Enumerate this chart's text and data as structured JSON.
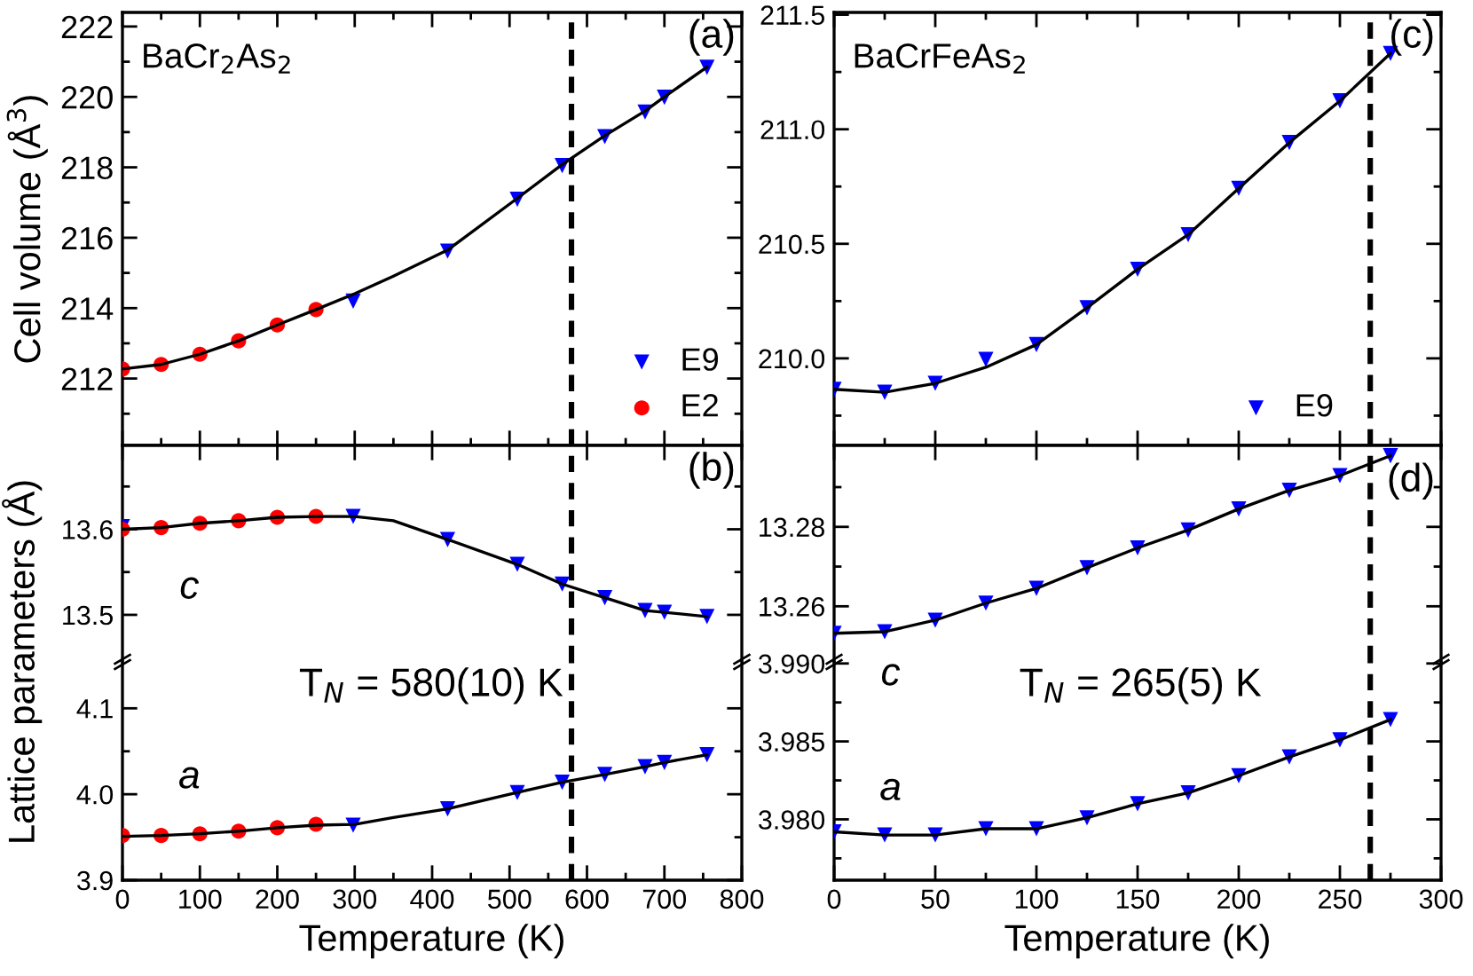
{
  "chart_data": [
    {
      "type": "scatter",
      "ylabel": "Cell volume (Å$^{3}$)",
      "annotations": [
        "BaCr$_{2}$As$_{2}$",
        "(a)"
      ],
      "xlim": [
        0,
        800
      ],
      "xticks": [
        0,
        {
          "value": 50,
          "label": null
        },
        100,
        {
          "value": 150,
          "label": null
        },
        200,
        {
          "value": 250,
          "label": null
        },
        300,
        {
          "value": 350,
          "label": null
        },
        400,
        {
          "value": 450,
          "label": null
        },
        500,
        {
          "value": 550,
          "label": null
        },
        600,
        {
          "value": 650,
          "label": null
        },
        700,
        {
          "value": 750,
          "label": null
        },
        800
      ],
      "ylim": [
        210.1,
        222.4
      ],
      "yticks": [
        {
          "value": 211,
          "label": null
        },
        212,
        {
          "value": 213,
          "label": null
        },
        214,
        {
          "value": 215,
          "label": null
        },
        216,
        {
          "value": 217,
          "label": null
        },
        218,
        {
          "value": 219,
          "label": null
        },
        220,
        {
          "value": 221,
          "label": null
        },
        222
      ],
      "tick_labels": "y",
      "legend": "bottom right",
      "ref_lines": [
        {
          "axis": "x",
          "value": 580,
          "color": "#000000",
          "line_style": "dashed"
        }
      ],
      "series": [
        {
          "name": "E9",
          "marker": "triangle",
          "color": "#0000ff",
          "x": [
            298,
            420,
            510,
            568,
            623,
            675,
            700,
            755
          ],
          "values": [
            214.2,
            215.62,
            217.09,
            218.05,
            218.87,
            219.57,
            219.99,
            220.84
          ]
        },
        {
          "name": "E2",
          "marker": "circle",
          "color": "#ff0000",
          "x": [
            0,
            50,
            100,
            150,
            200,
            250
          ],
          "values": [
            212.27,
            212.4,
            212.69,
            213.07,
            213.52,
            213.96
          ]
        },
        {
          "type": "line",
          "marker": "none",
          "color": "#000000",
          "x": [
            0,
            50,
            100,
            150,
            200,
            250,
            300,
            350,
            420,
            510,
            568,
            623,
            675,
            700,
            755
          ],
          "values": [
            212.27,
            212.4,
            212.69,
            213.07,
            213.52,
            213.96,
            214.41,
            214.91,
            215.65,
            217.12,
            218.08,
            218.9,
            219.6,
            220.0,
            220.85
          ]
        }
      ]
    },
    {
      "type": "scatter",
      "ylabel": "Lattice parameters (Å)",
      "annotations": [
        "(b)",
        "c"
      ],
      "xlim": [
        0,
        800
      ],
      "xticks": [
        0,
        100,
        200,
        300,
        400,
        500,
        600,
        700,
        800
      ],
      "ylim": [
        13.445,
        13.698
      ],
      "yticks": [
        13.5,
        {
          "value": 13.55,
          "label": null
        },
        13.6,
        {
          "value": 13.65,
          "label": null
        }
      ],
      "tick_labels": "y",
      "ref_lines": [
        {
          "axis": "x",
          "value": 580,
          "color": "#000000",
          "line_style": "dashed"
        }
      ],
      "series": [
        {
          "marker": "triangle",
          "color": "#0000ff",
          "x": [
            0,
            298,
            420,
            510,
            568,
            623,
            675,
            700,
            755
          ],
          "values": [
            13.603,
            13.615,
            13.588,
            13.559,
            13.536,
            13.52,
            13.505,
            13.503,
            13.498
          ]
        },
        {
          "marker": "circle",
          "color": "#ff0000",
          "x": [
            0,
            50,
            100,
            150,
            200,
            250
          ],
          "values": [
            13.6,
            13.602,
            13.607,
            13.61,
            13.614,
            13.615
          ]
        },
        {
          "type": "line",
          "marker": "none",
          "color": "#000000",
          "x": [
            0,
            50,
            100,
            150,
            200,
            250,
            300,
            350,
            420,
            510,
            568,
            623,
            675,
            700,
            755
          ],
          "values": [
            13.6,
            13.602,
            13.607,
            13.61,
            13.614,
            13.615,
            13.615,
            13.61,
            13.588,
            13.559,
            13.536,
            13.52,
            13.505,
            13.503,
            13.498
          ]
        }
      ]
    },
    {
      "type": "scatter",
      "xlabel": "Temperature (K)",
      "annotations": [
        "T$_{N}$ = 580(10) K",
        "a"
      ],
      "xlim": [
        0,
        800
      ],
      "xticks": [
        0,
        {
          "value": 50,
          "label": null
        },
        100,
        {
          "value": 150,
          "label": null
        },
        200,
        {
          "value": 250,
          "label": null
        },
        300,
        {
          "value": 350,
          "label": null
        },
        400,
        {
          "value": 450,
          "label": null
        },
        500,
        {
          "value": 550,
          "label": null
        },
        600,
        {
          "value": 650,
          "label": null
        },
        700,
        {
          "value": 750,
          "label": null
        },
        800
      ],
      "ylim": [
        3.9,
        4.154
      ],
      "yticks": [
        {
          "value": 3.9,
          "label": "3.9"
        },
        {
          "value": 3.95,
          "label": null
        },
        {
          "value": 4.0,
          "label": "4.0"
        },
        {
          "value": 4.05,
          "label": null
        },
        {
          "value": 4.1,
          "label": "4.1"
        }
      ],
      "ref_lines": [
        {
          "axis": "x",
          "value": 580,
          "color": "#000000",
          "line_style": "dashed"
        }
      ],
      "series": [
        {
          "marker": "triangle",
          "color": "#0000ff",
          "x": [
            298,
            420,
            510,
            568,
            623,
            675,
            700,
            755
          ],
          "values": [
            3.964,
            3.983,
            4.002,
            4.014,
            4.023,
            4.032,
            4.037,
            4.046
          ]
        },
        {
          "marker": "circle",
          "color": "#ff0000",
          "x": [
            0,
            50,
            100,
            150,
            200,
            250
          ],
          "values": [
            3.952,
            3.952,
            3.954,
            3.957,
            3.961,
            3.965
          ]
        },
        {
          "type": "line",
          "marker": "none",
          "color": "#000000",
          "x": [
            0,
            50,
            100,
            150,
            200,
            250,
            300,
            350,
            420,
            510,
            568,
            623,
            675,
            700,
            755
          ],
          "values": [
            3.951,
            3.952,
            3.954,
            3.957,
            3.961,
            3.964,
            3.965,
            3.973,
            3.983,
            4.002,
            4.014,
            4.023,
            4.032,
            4.037,
            4.046
          ]
        }
      ]
    },
    {
      "type": "scatter",
      "annotations": [
        "BaCrFeAs$_{2}$",
        "(c)"
      ],
      "xlim": [
        0,
        300
      ],
      "xticks": [
        0,
        {
          "value": 25,
          "label": null
        },
        50,
        {
          "value": 75,
          "label": null
        },
        100,
        {
          "value": 125,
          "label": null
        },
        150,
        {
          "value": 175,
          "label": null
        },
        200,
        {
          "value": 225,
          "label": null
        },
        250,
        {
          "value": 275,
          "label": null
        },
        300
      ],
      "ylim": [
        209.62,
        211.51
      ],
      "yticks": [
        {
          "value": 209.75,
          "label": null
        },
        {
          "value": 210.0,
          "label": "210.0"
        },
        {
          "value": 210.25,
          "label": null
        },
        {
          "value": 210.5,
          "label": "210.5"
        },
        {
          "value": 210.75,
          "label": null
        },
        {
          "value": 211.0,
          "label": "211.0"
        },
        {
          "value": 211.25,
          "label": null
        },
        {
          "value": 211.5,
          "label": "211.5"
        }
      ],
      "tick_labels": "y",
      "legend": "bottom right",
      "ref_lines": [
        {
          "axis": "x",
          "value": 265,
          "color": "#000000",
          "line_style": "dashed"
        }
      ],
      "series": [
        {
          "name": "E9",
          "marker": "triangle",
          "color": "#0000ff",
          "x": [
            0,
            25,
            50,
            75,
            100,
            125,
            150,
            175,
            200,
            225,
            250,
            275
          ],
          "values": [
            209.865,
            209.852,
            209.891,
            209.995,
            210.06,
            210.221,
            210.389,
            210.54,
            210.742,
            210.942,
            211.124,
            211.331
          ]
        },
        {
          "type": "line",
          "marker": "none",
          "color": "#000000",
          "x": [
            0,
            25,
            50,
            75,
            100,
            125,
            150,
            175,
            200,
            225,
            250,
            275
          ],
          "values": [
            209.865,
            209.852,
            209.891,
            209.961,
            210.06,
            210.221,
            210.389,
            210.54,
            210.742,
            210.942,
            211.124,
            211.331
          ]
        }
      ]
    },
    {
      "type": "scatter",
      "annotations": [
        "(d)"
      ],
      "xlim": [
        0,
        300
      ],
      "xticks": [
        0,
        50,
        100,
        150,
        200,
        250,
        300
      ],
      "ylim": [
        13.246,
        13.3005
      ],
      "yticks": [
        {
          "value": 13.26,
          "label": "13.26"
        },
        {
          "value": 13.27,
          "label": null
        },
        {
          "value": 13.28,
          "label": "13.28"
        },
        {
          "value": 13.29,
          "label": null
        }
      ],
      "tick_labels": "y",
      "ref_lines": [
        {
          "axis": "x",
          "value": 265,
          "color": "#000000",
          "line_style": "dashed"
        }
      ],
      "series": [
        {
          "marker": "triangle",
          "color": "#0000ff",
          "x": [
            0,
            25,
            50,
            75,
            100,
            125,
            150,
            175,
            200,
            225,
            250,
            275
          ],
          "values": [
            13.2532,
            13.2536,
            13.2565,
            13.2608,
            13.2645,
            13.2697,
            13.2747,
            13.2792,
            13.2845,
            13.2892,
            13.2929,
            13.2979
          ]
        },
        {
          "type": "line",
          "marker": "none",
          "color": "#000000",
          "x": [
            0,
            25,
            50,
            75,
            100,
            125,
            150,
            175,
            200,
            225,
            250,
            275
          ],
          "values": [
            13.2532,
            13.2536,
            13.2565,
            13.2608,
            13.2645,
            13.2697,
            13.2747,
            13.2792,
            13.2845,
            13.2892,
            13.2929,
            13.2979
          ]
        }
      ]
    },
    {
      "type": "scatter",
      "xlabel": "Temperature (K)",
      "annotations": [
        "T$_{N}$ = 265(5) K",
        "c",
        "a"
      ],
      "xlim": [
        0,
        300
      ],
      "xticks": [
        0,
        {
          "value": 25,
          "label": null
        },
        50,
        {
          "value": 75,
          "label": null
        },
        100,
        {
          "value": 125,
          "label": null
        },
        150,
        {
          "value": 175,
          "label": null
        },
        200,
        {
          "value": 225,
          "label": null
        },
        250,
        {
          "value": 275,
          "label": null
        },
        300
      ],
      "ylim": [
        3.9761,
        3.9901
      ],
      "yticks": [
        {
          "value": 3.9775,
          "label": null
        },
        {
          "value": 3.98,
          "label": "3.980"
        },
        {
          "value": 3.9825,
          "label": null
        },
        {
          "value": 3.985,
          "label": "3.985"
        },
        {
          "value": 3.9875,
          "label": null
        },
        {
          "value": 3.99,
          "label": "3.990"
        }
      ],
      "ref_lines": [
        {
          "axis": "x",
          "value": 265,
          "color": "#000000",
          "line_style": "dashed"
        }
      ],
      "series": [
        {
          "marker": "triangle",
          "color": "#0000ff",
          "x": [
            0,
            25,
            50,
            75,
            100,
            125,
            150,
            175,
            200,
            225,
            250,
            275
          ],
          "values": [
            3.9792,
            3.979,
            3.979,
            3.9794,
            3.9794,
            3.9801,
            3.981,
            3.9817,
            3.9828,
            3.984,
            3.9851,
            3.9864
          ]
        },
        {
          "type": "line",
          "marker": "none",
          "color": "#000000",
          "x": [
            0,
            25,
            50,
            75,
            100,
            125,
            150,
            175,
            200,
            225,
            250,
            275
          ],
          "values": [
            3.9792,
            3.979,
            3.979,
            3.9794,
            3.9794,
            3.9801,
            3.981,
            3.9817,
            3.9828,
            3.984,
            3.9851,
            3.9864
          ]
        }
      ]
    }
  ]
}
